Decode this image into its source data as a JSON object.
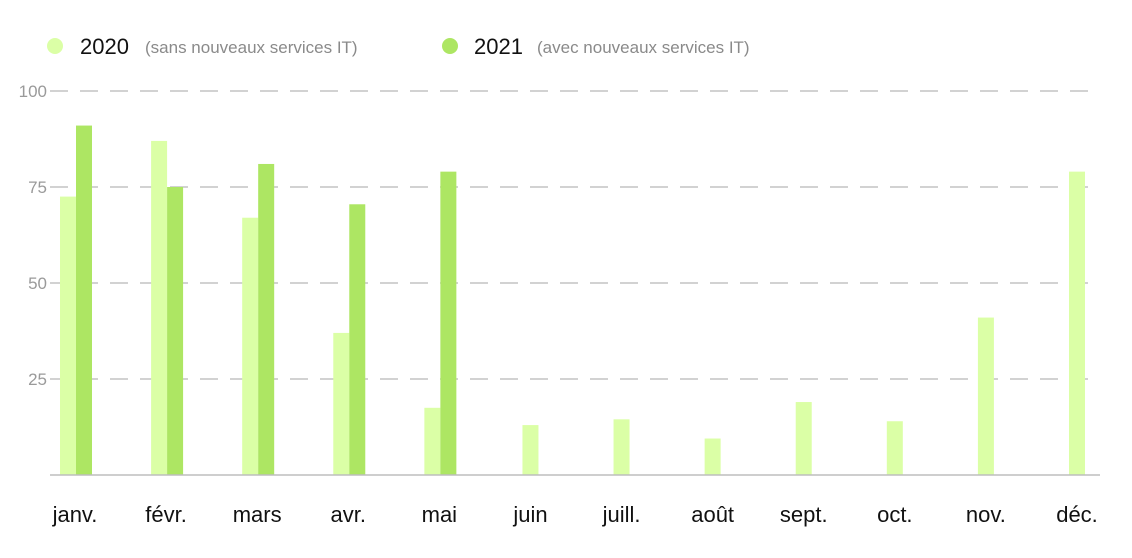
{
  "chart_data": {
    "type": "bar",
    "title": "",
    "xlabel": "",
    "ylabel": "",
    "ylim": [
      0,
      100
    ],
    "yticks": [
      25,
      50,
      75,
      100
    ],
    "grid": true,
    "legend_position": "top-left",
    "categories": [
      "janv.",
      "févr.",
      "mars",
      "avr.",
      "mai",
      "juin",
      "juill.",
      "août",
      "sept.",
      "oct.",
      "nov.",
      "déc."
    ],
    "series": [
      {
        "name": "2020",
        "name_detail": "(sans nouveaux services IT)",
        "color": "#dbffa6",
        "values": [
          72.5,
          87,
          67,
          37,
          17.5,
          13,
          14.5,
          9.5,
          19,
          14,
          41,
          79
        ]
      },
      {
        "name": "2021",
        "name_detail": "(avec nouveaux services IT)",
        "color": "#ade663",
        "values": [
          91,
          75,
          81,
          70.5,
          79,
          null,
          null,
          null,
          null,
          null,
          null,
          null
        ]
      }
    ]
  }
}
